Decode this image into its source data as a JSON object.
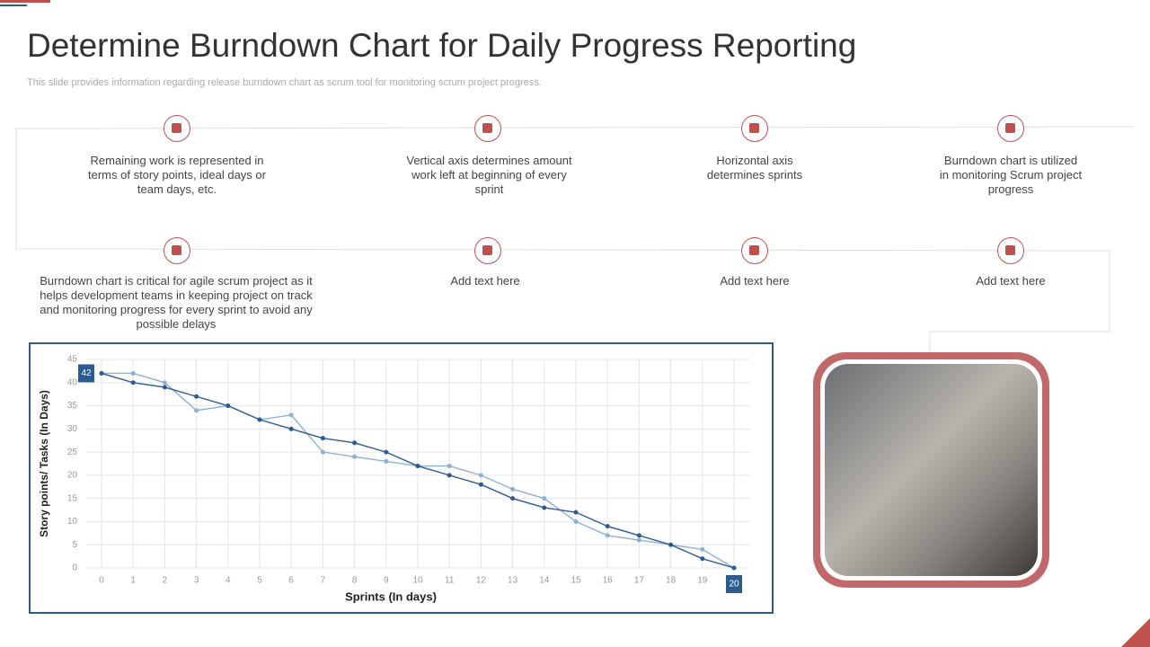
{
  "header": {
    "title": "Determine Burndown Chart for Daily Progress Reporting",
    "subtitle": "This slide provides information regarding release burndown chart as scrum tool for monitoring scrum project progress."
  },
  "items": [
    {
      "text": "Remaining work is represented in terms of story points, ideal days or team days, etc."
    },
    {
      "text": "Vertical axis determines amount work left at beginning of every sprint"
    },
    {
      "text": "Horizontal axis determines sprints"
    },
    {
      "text": "Burndown chart is utilized in monitoring Scrum project progress"
    },
    {
      "text": "Burndown chart is critical for agile scrum project as it helps development  teams in keeping project on track and monitoring progress for every sprint to avoid any possible delays"
    },
    {
      "text": "Add text here"
    },
    {
      "text": "Add text here"
    },
    {
      "text": "Add text here"
    }
  ],
  "chart_data": {
    "type": "line",
    "x": [
      0,
      1,
      2,
      3,
      4,
      5,
      6,
      7,
      8,
      9,
      10,
      11,
      12,
      13,
      14,
      15,
      16,
      17,
      18,
      19,
      20
    ],
    "series": [
      {
        "color": "#2e5b8f",
        "values": [
          42,
          40,
          39,
          37,
          35,
          32,
          30,
          28,
          27,
          25,
          22,
          20,
          18,
          15,
          13,
          12,
          9,
          7,
          5,
          2,
          0
        ]
      },
      {
        "color": "#8fb0d6",
        "values": [
          42,
          42,
          40,
          34,
          35,
          32,
          33,
          25,
          24,
          23,
          22,
          22,
          20,
          17,
          15,
          10,
          7,
          6,
          5,
          4,
          0
        ]
      }
    ],
    "xlabel": "Sprints (In days)",
    "ylabel": "Story points/ Tasks (In Days)",
    "xlim": [
      0,
      20
    ],
    "xticks": [
      0,
      1,
      2,
      3,
      4,
      5,
      6,
      7,
      8,
      9,
      10,
      11,
      12,
      13,
      14,
      15,
      16,
      17,
      18,
      19,
      20
    ],
    "ylim": [
      0,
      45
    ],
    "yticks": [
      0,
      5,
      10,
      15,
      20,
      25,
      30,
      35,
      40,
      45
    ],
    "grid": true,
    "annotations": [
      "42",
      "20"
    ]
  }
}
